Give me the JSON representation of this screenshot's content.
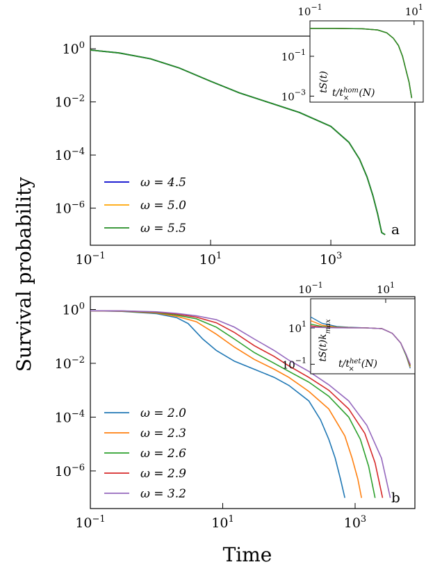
{
  "figure": {
    "ylabel": "Survival probability",
    "xlabel": "Time"
  },
  "chart_data": [
    {
      "type": "line",
      "panel": "a",
      "xscale": "log",
      "yscale": "log",
      "xlim": [
        0.1,
        25000
      ],
      "ylim": [
        4e-08,
        3
      ],
      "x_ticks": [
        0.1,
        10,
        1000
      ],
      "x_tick_labels": [
        "10^-1",
        "10^1",
        "10^3"
      ],
      "y_ticks": [
        1,
        0.01,
        0.0001,
        1e-06
      ],
      "y_tick_labels": [
        "10^0",
        "10^-2",
        "10^-4",
        "10^-6"
      ],
      "legend": "lower-left",
      "series": [
        {
          "name": "ω = 4.5",
          "color": "#0000cc"
        },
        {
          "name": "ω = 5.0",
          "color": "#ffa500"
        },
        {
          "name": "ω = 5.5",
          "color": "#228b22"
        }
      ],
      "curve": {
        "x": [
          0.1,
          0.3,
          1,
          3,
          10,
          30,
          100,
          300,
          1000,
          2000,
          3000,
          4000,
          5000,
          6000,
          7000,
          8000
        ],
        "y": [
          0.9,
          0.7,
          0.42,
          0.19,
          0.06,
          0.022,
          0.009,
          0.004,
          0.0012,
          0.0003,
          7e-05,
          1.5e-05,
          3e-06,
          6e-07,
          1.2e-07,
          1e-07
        ]
      },
      "inset": {
        "xlabel": "t/t×^hom(N)",
        "ylabel": "tS(t)",
        "xscale": "log",
        "yscale": "log",
        "xlim": [
          0.1,
          15
        ],
        "ylim": [
          0.0005,
          6
        ],
        "x_tick_labels": [
          "10^-1",
          "10^1"
        ],
        "y_tick_labels": [
          "10^-1",
          "10^-3"
        ],
        "curve": {
          "x": [
            0.1,
            0.3,
            1,
            2,
            3,
            4,
            5,
            6,
            7,
            8,
            9
          ],
          "y": [
            2.5,
            2.5,
            2.4,
            2.1,
            1.5,
            0.8,
            0.35,
            0.1,
            0.02,
            0.005,
            0.0008
          ]
        }
      }
    },
    {
      "type": "line",
      "panel": "b",
      "xscale": "log",
      "yscale": "log",
      "xlim": [
        0.1,
        8000
      ],
      "ylim": [
        4e-08,
        3
      ],
      "x_ticks": [
        0.1,
        10,
        1000
      ],
      "x_tick_labels": [
        "10^-1",
        "10^1",
        "10^3"
      ],
      "y_ticks": [
        1,
        0.01,
        0.0001,
        1e-06
      ],
      "y_tick_labels": [
        "10^0",
        "10^-2",
        "10^-4",
        "10^-6"
      ],
      "legend": "lower-left",
      "series": [
        {
          "name": "ω = 2.0",
          "color": "#1f77b4",
          "x": [
            0.1,
            0.3,
            1,
            2,
            3,
            5,
            8,
            15,
            30,
            60,
            100,
            200,
            300,
            400,
            500,
            600,
            700
          ],
          "y": [
            0.9,
            0.85,
            0.7,
            0.5,
            0.3,
            0.08,
            0.03,
            0.012,
            0.006,
            0.003,
            0.0015,
            0.0004,
            8e-05,
            1.5e-05,
            3e-06,
            5e-07,
            1e-07
          ]
        },
        {
          "name": "ω = 2.3",
          "color": "#ff7f0e",
          "x": [
            0.1,
            0.3,
            1,
            2,
            4,
            8,
            15,
            30,
            60,
            100,
            200,
            400,
            700,
            900,
            1100,
            1250
          ],
          "y": [
            0.9,
            0.86,
            0.74,
            0.56,
            0.35,
            0.12,
            0.04,
            0.014,
            0.006,
            0.003,
            0.0009,
            0.0002,
            2e-05,
            3e-06,
            5e-07,
            1e-07
          ]
        },
        {
          "name": "ω = 2.6",
          "color": "#2ca02c",
          "x": [
            0.1,
            0.3,
            1,
            2,
            4,
            8,
            15,
            30,
            60,
            100,
            200,
            400,
            800,
            1200,
            1600,
            2000
          ],
          "y": [
            0.9,
            0.87,
            0.78,
            0.62,
            0.45,
            0.22,
            0.08,
            0.025,
            0.01,
            0.005,
            0.002,
            0.0006,
            0.0001,
            1.5e-05,
            1.5e-06,
            1e-07
          ]
        },
        {
          "name": "ω = 2.9",
          "color": "#d62728",
          "x": [
            0.1,
            0.3,
            1,
            2,
            4,
            8,
            15,
            30,
            60,
            100,
            200,
            400,
            800,
            1400,
            2000,
            2600
          ],
          "y": [
            0.9,
            0.88,
            0.8,
            0.68,
            0.52,
            0.32,
            0.14,
            0.045,
            0.018,
            0.008,
            0.003,
            0.001,
            0.0002,
            2.5e-05,
            2e-06,
            1e-07
          ]
        },
        {
          "name": "ω = 3.2",
          "color": "#9467bd",
          "x": [
            0.1,
            0.3,
            1,
            2,
            4,
            8,
            15,
            30,
            60,
            100,
            200,
            400,
            800,
            1500,
            2500,
            3400
          ],
          "y": [
            0.9,
            0.89,
            0.82,
            0.72,
            0.58,
            0.42,
            0.22,
            0.08,
            0.03,
            0.013,
            0.005,
            0.0016,
            0.0004,
            5e-05,
            3e-06,
            1e-07
          ]
        }
      ],
      "inset": {
        "xlabel": "t/t×^het(N)",
        "ylabel": "tS(t)k_max",
        "xscale": "log",
        "yscale": "log",
        "xlim": [
          0.1,
          60
        ],
        "ylim": [
          0.03,
          400
        ],
        "x_tick_labels": [
          "10^-1",
          "10^1"
        ],
        "y_tick_labels": [
          "10^1",
          "10^-1"
        ]
      }
    }
  ]
}
